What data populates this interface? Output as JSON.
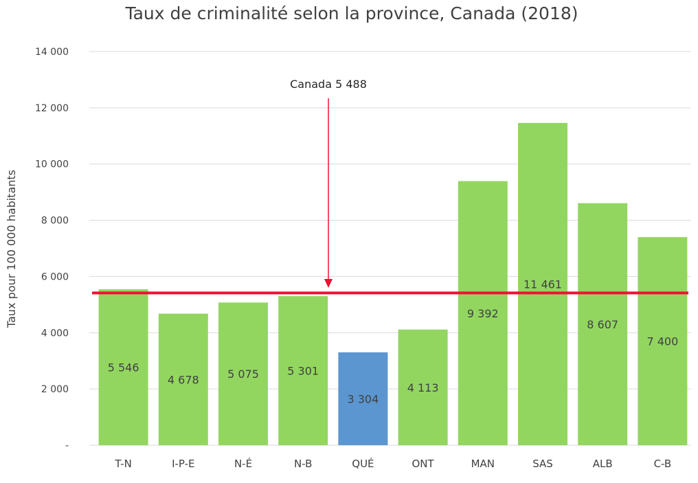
{
  "chart_data": {
    "type": "bar",
    "title": "Taux de criminalité selon la province, Canada (2018)",
    "xlabel": "",
    "ylabel": "Taux pour 100 000 habitants",
    "ylim": [
      0,
      14000
    ],
    "yticks": [
      0,
      2000,
      4000,
      6000,
      8000,
      10000,
      12000,
      14000
    ],
    "ytick_labels": [
      "-",
      "2 000",
      "4 000",
      "6 000",
      "8 000",
      "10 000",
      "12 000",
      "14 000"
    ],
    "grid": true,
    "categories": [
      "T-N",
      "I-P-E",
      "N-É",
      "N-B",
      "QUÉ",
      "ONT",
      "MAN",
      "SAS",
      "ALB",
      "C-B"
    ],
    "values": [
      5546,
      4678,
      5075,
      5301,
      3304,
      4113,
      9392,
      11461,
      8607,
      7400
    ],
    "value_labels": [
      "5 546",
      "4 678",
      "5 075",
      "5 301",
      "3 304",
      "4 113",
      "9 392",
      "11 461",
      "8 607",
      "7 400"
    ],
    "highlight_index": 4,
    "colors": {
      "bar": "#92d660",
      "highlight": "#5b96d0",
      "reference": "#ee1133",
      "grid": "#d9d9d9",
      "text": "#404040"
    },
    "reference_line": {
      "value": 5488,
      "label": "Canada 5 488"
    }
  }
}
